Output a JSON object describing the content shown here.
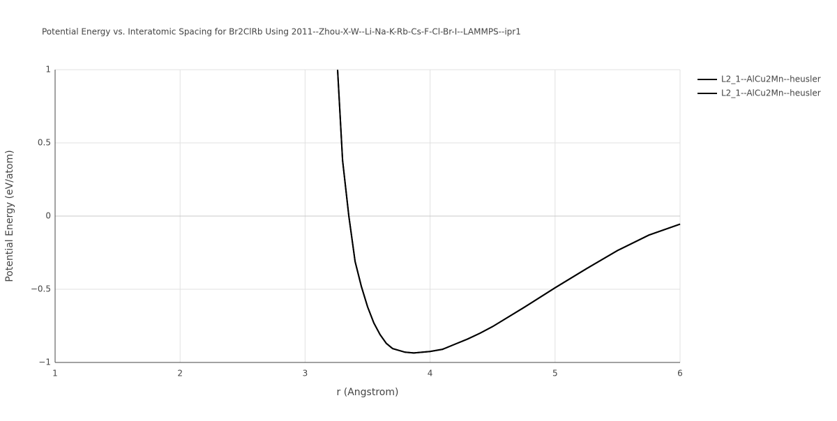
{
  "chart_data": {
    "type": "line",
    "title": "Potential Energy vs. Interatomic Spacing for Br2ClRb Using 2011--Zhou-X-W--Li-Na-K-Rb-Cs-F-Cl-Br-I--LAMMPS--ipr1",
    "xlabel": "r (Angstrom)",
    "ylabel": "Potential Energy (eV/atom)",
    "x": [
      3.26,
      3.3,
      3.35,
      3.4,
      3.45,
      3.5,
      3.55,
      3.6,
      3.65,
      3.7,
      3.8,
      3.87,
      4.0,
      4.1,
      4.2,
      4.3,
      4.4,
      4.5,
      4.75,
      5.0,
      5.25,
      5.5,
      5.75,
      6.0
    ],
    "series": [
      {
        "name": "L2_1--AlCu2Mn--heusler",
        "color": "#000000",
        "values": [
          1.0,
          0.38,
          0.0,
          -0.31,
          -0.48,
          -0.62,
          -0.73,
          -0.81,
          -0.87,
          -0.905,
          -0.93,
          -0.935,
          -0.925,
          -0.91,
          -0.875,
          -0.84,
          -0.8,
          -0.755,
          -0.625,
          -0.49,
          -0.36,
          -0.235,
          -0.13,
          -0.055
        ]
      },
      {
        "name": "L2_1--AlCu2Mn--heusler",
        "color": "#000000",
        "values": [
          1.0,
          0.38,
          0.0,
          -0.31,
          -0.48,
          -0.62,
          -0.73,
          -0.81,
          -0.87,
          -0.905,
          -0.93,
          -0.935,
          -0.925,
          -0.91,
          -0.875,
          -0.84,
          -0.8,
          -0.755,
          -0.625,
          -0.49,
          -0.36,
          -0.235,
          -0.13,
          -0.055
        ]
      }
    ],
    "xlim": [
      1,
      6
    ],
    "xticks": [
      1,
      2,
      3,
      4,
      5,
      6
    ],
    "ylim": [
      -1,
      1
    ],
    "yticks": [
      {
        "value": -1,
        "label": "−1"
      },
      {
        "value": -0.5,
        "label": "−0.5"
      },
      0,
      0.5,
      1
    ],
    "grid": true,
    "legend": "top-right"
  }
}
